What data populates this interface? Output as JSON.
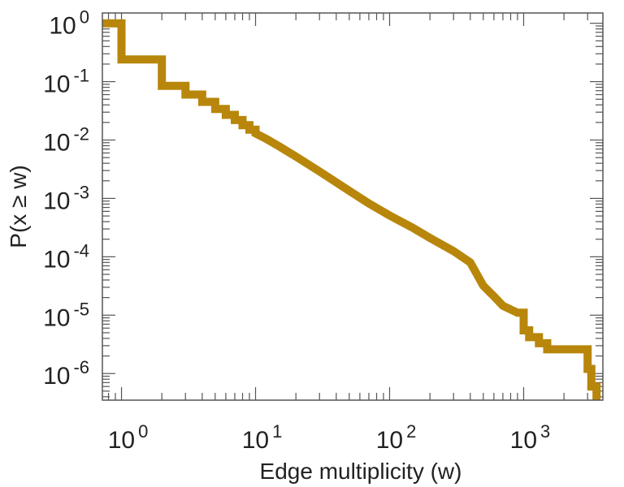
{
  "chart_data": {
    "type": "line",
    "xlabel": "Edge multiplicity (w)",
    "ylabel": "P(x ≥ w)",
    "xscale": "log",
    "yscale": "log",
    "xlim": [
      0.72,
      3900
    ],
    "ylim": [
      3.5e-07,
      1.5
    ],
    "grid": false,
    "line_color": "#B8860B",
    "x_ticks": [
      {
        "value": 1,
        "base": "10",
        "exp": "0"
      },
      {
        "value": 10,
        "base": "10",
        "exp": "1"
      },
      {
        "value": 100,
        "base": "10",
        "exp": "2"
      },
      {
        "value": 1000,
        "base": "10",
        "exp": "3"
      }
    ],
    "y_ticks": [
      {
        "value": 1,
        "base": "10",
        "exp": "0"
      },
      {
        "value": 0.1,
        "base": "10",
        "exp": "-1"
      },
      {
        "value": 0.01,
        "base": "10",
        "exp": "-2"
      },
      {
        "value": 0.001,
        "base": "10",
        "exp": "-3"
      },
      {
        "value": 0.0001,
        "base": "10",
        "exp": "-4"
      },
      {
        "value": 1e-05,
        "base": "10",
        "exp": "-5"
      },
      {
        "value": 1e-06,
        "base": "10",
        "exp": "-6"
      }
    ],
    "series": [
      {
        "step": true,
        "points": [
          [
            0.72,
            1.0
          ],
          [
            1,
            1.0
          ],
          [
            1,
            0.24
          ],
          [
            2,
            0.24
          ],
          [
            2,
            0.085
          ],
          [
            3,
            0.085
          ],
          [
            3,
            0.06
          ],
          [
            4,
            0.06
          ],
          [
            4,
            0.045
          ],
          [
            5,
            0.045
          ],
          [
            5,
            0.034
          ],
          [
            6,
            0.034
          ],
          [
            6,
            0.027
          ],
          [
            7,
            0.027
          ],
          [
            7,
            0.022
          ],
          [
            8,
            0.022
          ],
          [
            8,
            0.018
          ],
          [
            9,
            0.018
          ],
          [
            9,
            0.015
          ],
          [
            10,
            0.015
          ],
          [
            10,
            0.013
          ],
          [
            12,
            0.0105
          ],
          [
            15,
            0.0078
          ],
          [
            20,
            0.0052
          ],
          [
            30,
            0.0029
          ],
          [
            50,
            0.00135
          ],
          [
            70,
            0.00082
          ],
          [
            100,
            0.00051
          ],
          [
            150,
            0.00031
          ],
          [
            200,
            0.00021
          ],
          [
            300,
            0.000125
          ],
          [
            400,
            8e-05
          ],
          [
            500,
            3.2e-05
          ],
          [
            600,
            2.1e-05
          ],
          [
            700,
            1.45e-05
          ],
          [
            900,
            1.1e-05
          ],
          [
            1000,
            1.1e-05
          ],
          [
            1000,
            5.5e-06
          ],
          [
            1100,
            5.5e-06
          ],
          [
            1100,
            4.2e-06
          ],
          [
            1300,
            4.2e-06
          ],
          [
            1300,
            3.3e-06
          ],
          [
            1500,
            3.3e-06
          ],
          [
            1500,
            2.6e-06
          ],
          [
            3000,
            2.6e-06
          ],
          [
            3000,
            1.2e-06
          ],
          [
            3200,
            1.2e-06
          ],
          [
            3200,
            6e-07
          ],
          [
            3500,
            6e-07
          ],
          [
            3500,
            3.5e-07
          ]
        ]
      }
    ]
  }
}
